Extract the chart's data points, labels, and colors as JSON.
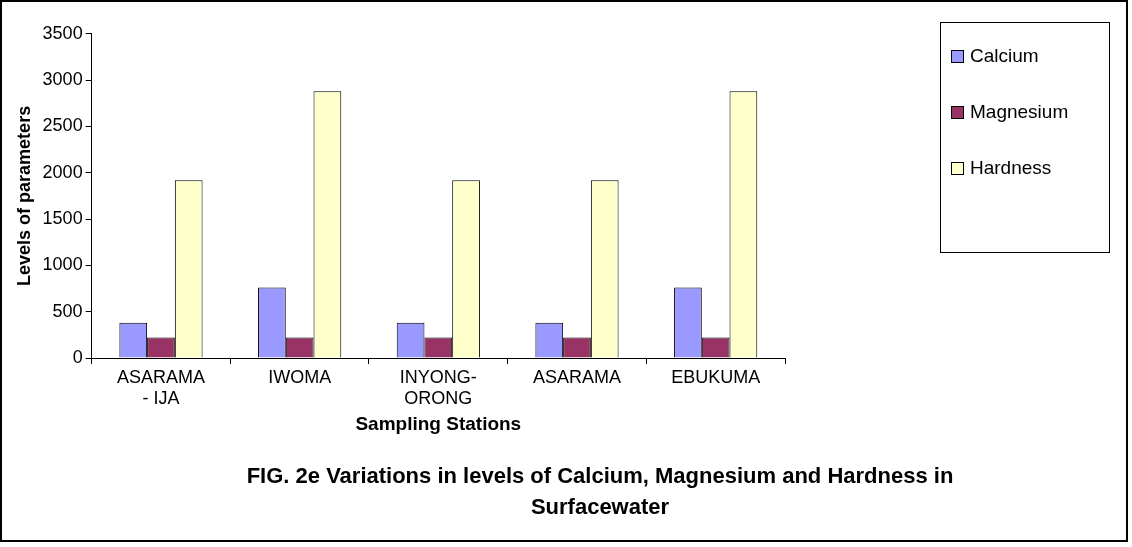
{
  "chart_data": {
    "type": "bar",
    "title": "FIG. 2e Variations in levels of Calcium, Magnesium and Hardness in Surfacewater",
    "xlabel": "Sampling Stations",
    "ylabel": "Levels of parameters",
    "categories": [
      "ASARAMA - IJA",
      "IWOMA",
      "INYONG-ORONG",
      "ASARAMA",
      "EBUKUMA"
    ],
    "series": [
      {
        "name": "Calcium",
        "color": "#9999ff",
        "values": [
          380,
          760,
          380,
          380,
          760
        ]
      },
      {
        "name": "Magnesium",
        "color": "#993366",
        "values": [
          220,
          220,
          220,
          220,
          220
        ]
      },
      {
        "name": "Hardness",
        "color": "#ffffcc",
        "values": [
          1920,
          2880,
          1920,
          1920,
          2880
        ]
      }
    ],
    "ylim": [
      0,
      3500
    ],
    "yticks": [
      0,
      500,
      1000,
      1500,
      2000,
      2500,
      3000,
      3500
    ],
    "grid": false,
    "legend": "right"
  }
}
